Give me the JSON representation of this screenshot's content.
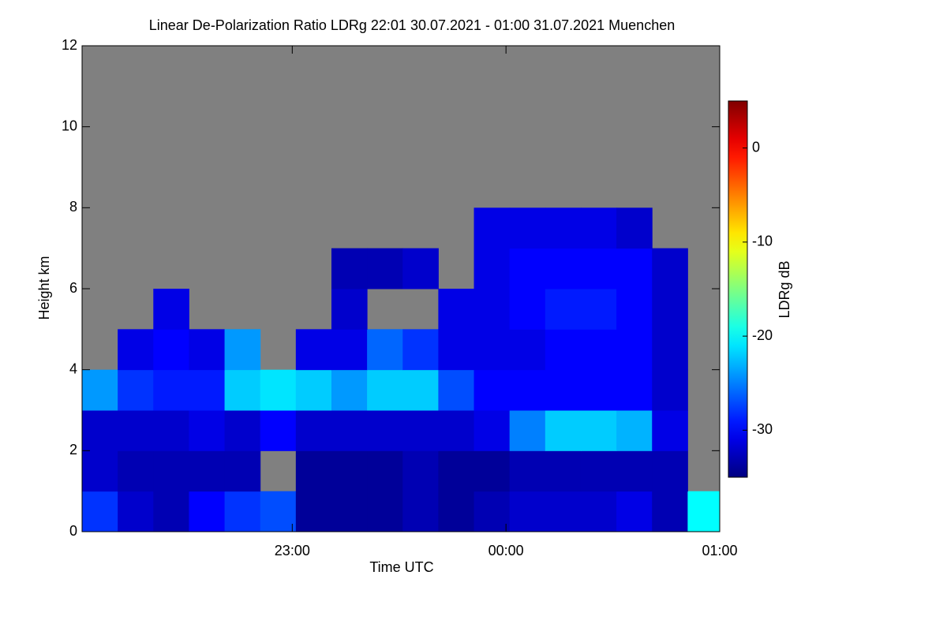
{
  "chart_data": {
    "type": "heatmap",
    "title": "Linear De-Polarization Ratio LDRg   22:01 30.07.2021 - 01:00 31.07.2021 Muenchen",
    "x_label": "Time UTC",
    "y_label": "Height km",
    "colorbar_label": "LDRg dB",
    "xlim": [
      1,
      180
    ],
    "xticks": [
      {
        "value": 60,
        "label": "23:00"
      },
      {
        "value": 120,
        "label": "00:00"
      },
      {
        "value": 180,
        "label": "01:00"
      }
    ],
    "ylim": [
      0,
      12
    ],
    "yticks": [
      0,
      2,
      4,
      6,
      8,
      10,
      12
    ],
    "zlim": [
      -35,
      5
    ],
    "zticks": [
      -30,
      -20,
      -10,
      0
    ],
    "colormap": "jet",
    "background_color": "#808080",
    "xbins": [
      1,
      11,
      21,
      31,
      41,
      51,
      61,
      71,
      81,
      91,
      101,
      111,
      121,
      131,
      141,
      151,
      161,
      171,
      180
    ],
    "ybins": [
      0,
      1,
      2,
      3,
      4,
      5,
      6,
      7,
      8,
      9,
      10,
      11,
      12
    ],
    "z": [
      [
        -28,
        -32,
        -33,
        -30,
        -28,
        -27,
        -34,
        -34,
        -34,
        -33,
        -34,
        -33,
        -32,
        -32,
        -32,
        -31,
        -33,
        -20
      ],
      [
        -32,
        -33,
        -33,
        -33,
        -33,
        null,
        -34,
        -34,
        -34,
        -33,
        -34,
        -34,
        -33,
        -33,
        -33,
        -33,
        -33,
        null
      ],
      [
        -32,
        -32,
        -32,
        -31,
        -32,
        -30,
        -32,
        -32,
        -32,
        -32,
        -32,
        -31,
        -25,
        -22,
        -22,
        -23,
        -31,
        null
      ],
      [
        -24,
        -28,
        -29,
        -29,
        -22,
        -21,
        -22,
        -24,
        -22,
        -22,
        -27,
        -30,
        -30,
        -30,
        -30,
        -30,
        -32,
        null
      ],
      [
        null,
        -31,
        -30,
        -31,
        -24,
        null,
        -31,
        -31,
        -26,
        -28,
        -31,
        -31,
        -31,
        -30,
        -30,
        -30,
        -32,
        null
      ],
      [
        null,
        null,
        -31,
        null,
        null,
        null,
        null,
        -32,
        null,
        null,
        -31,
        -31,
        -30,
        -29,
        -29,
        -30,
        -32,
        null
      ],
      [
        null,
        null,
        null,
        null,
        null,
        null,
        null,
        -33,
        -33,
        -32,
        null,
        -31,
        -30,
        -30,
        -30,
        -30,
        -32,
        null
      ],
      [
        null,
        null,
        null,
        null,
        null,
        null,
        null,
        null,
        null,
        null,
        null,
        -31,
        -31,
        -31,
        -31,
        -32,
        null,
        null
      ],
      [
        null,
        null,
        null,
        null,
        null,
        null,
        null,
        null,
        null,
        null,
        null,
        null,
        null,
        null,
        null,
        null,
        null,
        null
      ],
      [
        null,
        null,
        null,
        null,
        null,
        null,
        null,
        null,
        null,
        null,
        null,
        null,
        null,
        null,
        null,
        null,
        null,
        null
      ],
      [
        null,
        null,
        null,
        null,
        null,
        null,
        null,
        null,
        null,
        null,
        null,
        null,
        null,
        null,
        null,
        null,
        null,
        null
      ],
      [
        null,
        null,
        null,
        null,
        null,
        null,
        null,
        null,
        null,
        null,
        null,
        null,
        null,
        null,
        null,
        null,
        null,
        null
      ]
    ]
  }
}
